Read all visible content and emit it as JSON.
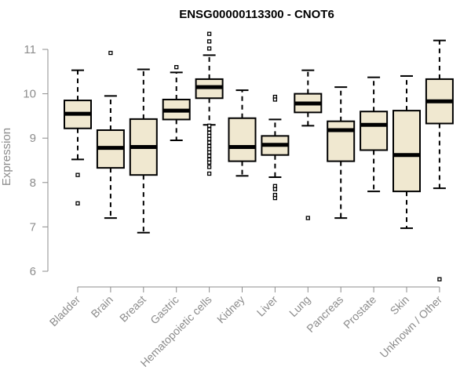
{
  "chart_data": {
    "type": "box",
    "title": "ENSG00000113300 - CNOT6",
    "xlabel": "",
    "ylabel": "Expression",
    "ylim": [
      5.75,
      11.4
    ],
    "yticks": [
      6,
      7,
      8,
      9,
      10,
      11
    ],
    "box_fill": "#f0e8d0",
    "grid": false,
    "categories": [
      "Bladder",
      "Brain",
      "Breast",
      "Gastric",
      "Hematopoietic cells",
      "Kidney",
      "Liver",
      "Lung",
      "Pancreas",
      "Prostate",
      "Skin",
      "Unknown / Other"
    ],
    "boxes": [
      {
        "whisker_low": 8.52,
        "q1": 9.22,
        "median": 9.55,
        "q3": 9.85,
        "whisker_high": 10.53,
        "outliers": [
          8.17,
          7.53
        ]
      },
      {
        "whisker_low": 7.2,
        "q1": 8.33,
        "median": 8.78,
        "q3": 9.18,
        "whisker_high": 9.95,
        "outliers": [
          10.92
        ]
      },
      {
        "whisker_low": 6.87,
        "q1": 8.17,
        "median": 8.8,
        "q3": 9.43,
        "whisker_high": 10.55,
        "outliers": []
      },
      {
        "whisker_low": 8.95,
        "q1": 9.42,
        "median": 9.62,
        "q3": 9.87,
        "whisker_high": 10.48,
        "outliers": [
          10.6
        ]
      },
      {
        "whisker_low": 9.3,
        "q1": 9.9,
        "median": 10.15,
        "q3": 10.33,
        "whisker_high": 10.87,
        "outliers": [
          11.35,
          11.18,
          11.02,
          9.28,
          9.2,
          9.12,
          9.05,
          8.98,
          8.9,
          8.82,
          8.75,
          8.68,
          8.6,
          8.52,
          8.45,
          8.35,
          8.2
        ]
      },
      {
        "whisker_low": 8.15,
        "q1": 8.48,
        "median": 8.8,
        "q3": 9.45,
        "whisker_high": 10.08,
        "outliers": []
      },
      {
        "whisker_low": 8.12,
        "q1": 8.62,
        "median": 8.85,
        "q3": 9.05,
        "whisker_high": 9.42,
        "outliers": [
          9.93,
          9.87,
          7.92,
          7.85,
          7.72,
          7.65
        ]
      },
      {
        "whisker_low": 9.28,
        "q1": 9.58,
        "median": 9.78,
        "q3": 10.0,
        "whisker_high": 10.53,
        "outliers": [
          7.2
        ]
      },
      {
        "whisker_low": 7.2,
        "q1": 8.48,
        "median": 9.18,
        "q3": 9.38,
        "whisker_high": 10.15,
        "outliers": []
      },
      {
        "whisker_low": 7.8,
        "q1": 8.73,
        "median": 9.3,
        "q3": 9.6,
        "whisker_high": 10.37,
        "outliers": []
      },
      {
        "whisker_low": 6.97,
        "q1": 7.8,
        "median": 8.62,
        "q3": 9.62,
        "whisker_high": 10.4,
        "outliers": []
      },
      {
        "whisker_low": 7.87,
        "q1": 9.33,
        "median": 9.83,
        "q3": 10.33,
        "whisker_high": 11.2,
        "outliers": [
          5.82
        ]
      }
    ]
  }
}
